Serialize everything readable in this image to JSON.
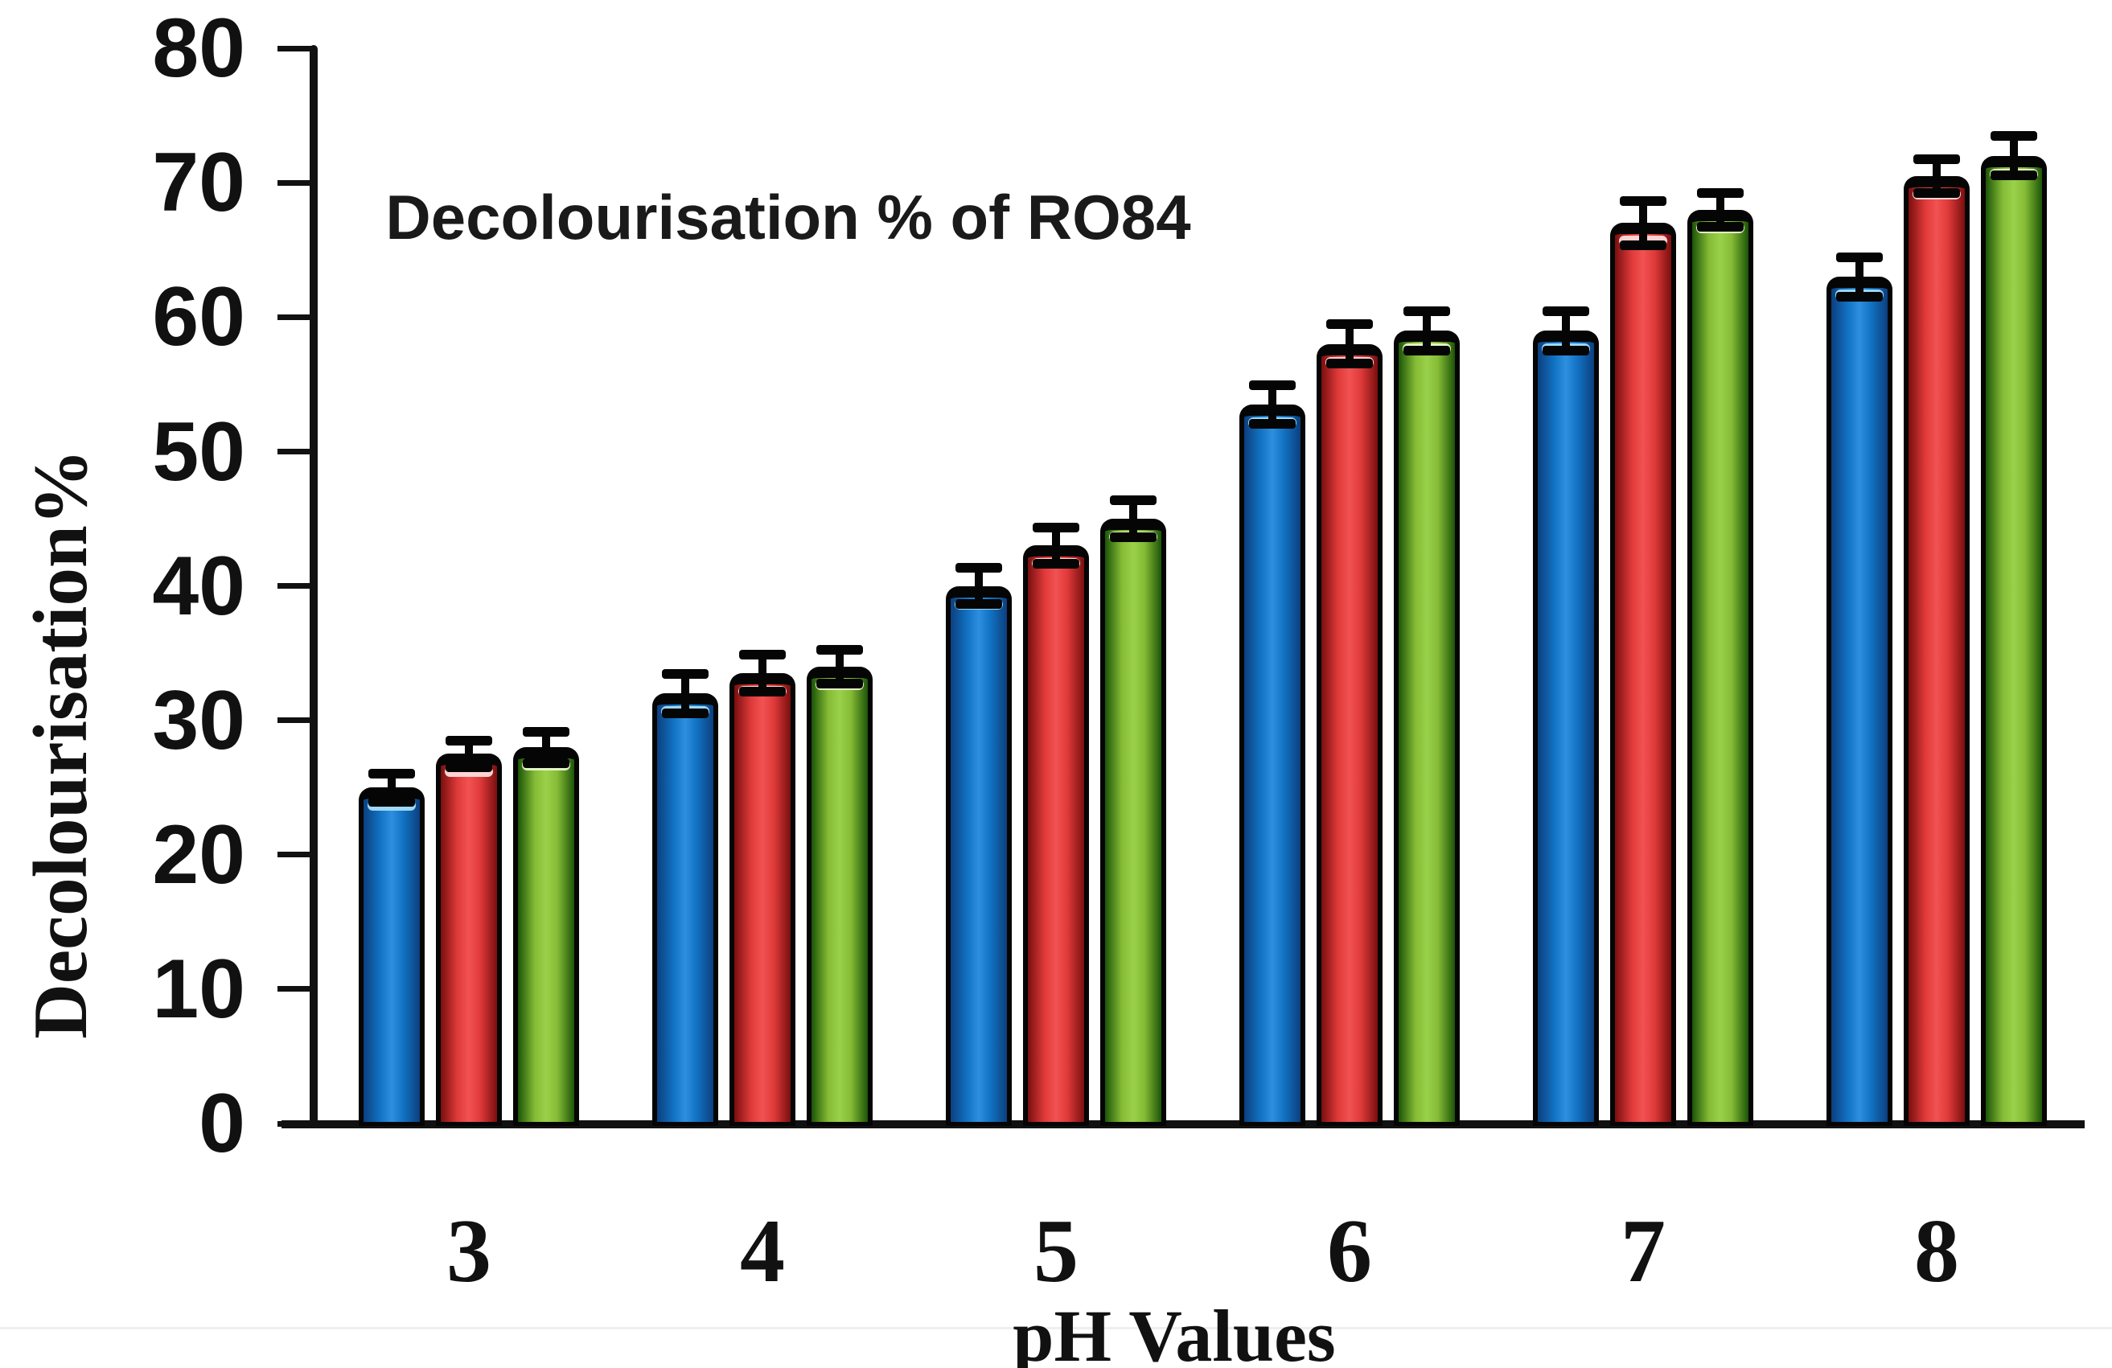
{
  "chart_data": {
    "type": "bar",
    "title": "Decolourisation % of RO84",
    "xlabel": "pH Values",
    "ylabel": "Decolourisation%",
    "categories": [
      "3",
      "4",
      "5",
      "6",
      "7",
      "8"
    ],
    "series": [
      {
        "name": "series-blue",
        "color_main": "#1273c4",
        "color_edge": "#0c3f7e",
        "color_light": "#2e8fe0",
        "color_highlight": "#a6ddf7",
        "values": [
          25,
          32,
          40,
          53.5,
          59,
          63
        ],
        "errors": [
          1.3,
          1.7,
          1.6,
          1.7,
          1.7,
          1.7
        ]
      },
      {
        "name": "series-red",
        "color_main": "#e03a3a",
        "color_edge": "#7a0f0f",
        "color_light": "#f25252",
        "color_highlight": "#ffdcdc",
        "values": [
          27.5,
          33.5,
          43,
          58,
          67,
          70.5
        ],
        "errors": [
          1.2,
          1.6,
          1.6,
          1.7,
          1.9,
          1.5
        ]
      },
      {
        "name": "series-green",
        "color_main": "#85bb35",
        "color_edge": "#1c5508",
        "color_light": "#9ad14a",
        "color_highlight": "#e9f8cd",
        "values": [
          28,
          34,
          45,
          59,
          68,
          72
        ],
        "errors": [
          1.4,
          1.5,
          1.6,
          1.7,
          1.5,
          1.7
        ]
      }
    ],
    "ylim": [
      0,
      80
    ],
    "yticks": [
      0,
      10,
      20,
      30,
      40,
      50,
      60,
      70,
      80
    ],
    "grid": false,
    "legend": false
  }
}
